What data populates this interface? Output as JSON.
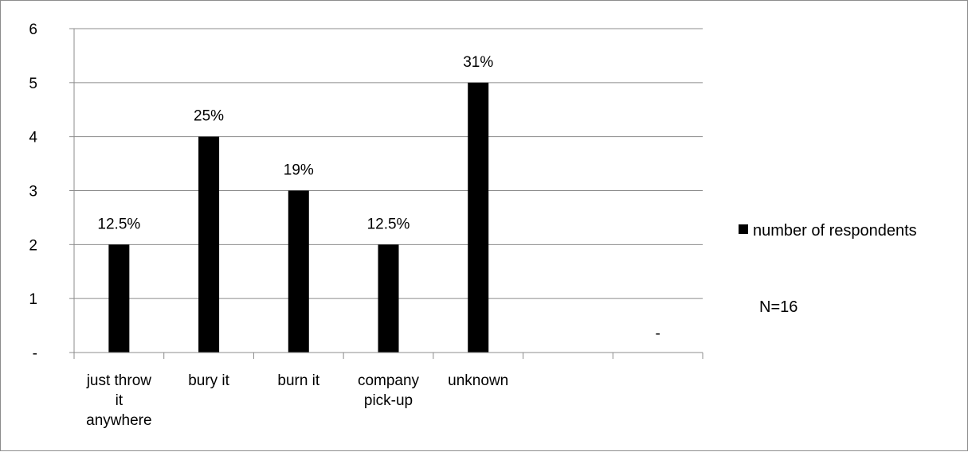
{
  "chart_data": {
    "type": "bar",
    "categories": [
      [
        "just throw",
        "it",
        "anywhere"
      ],
      [
        "bury it"
      ],
      [
        "burn it"
      ],
      [
        "company",
        "pick-up"
      ],
      [
        "unknown"
      ],
      [],
      []
    ],
    "series": [
      {
        "name": "number of respondents",
        "values": [
          2,
          4,
          3,
          2,
          5,
          null,
          null
        ],
        "data_labels": [
          "12.5%",
          "25%",
          "19%",
          "12.5%",
          "31%",
          "",
          "-"
        ],
        "color": "#000000"
      }
    ],
    "y_ticks": [
      "-",
      "1",
      "2",
      "3",
      "4",
      "5",
      "6"
    ],
    "ylim": [
      0,
      6
    ],
    "grid": true,
    "legend_position": "right",
    "annotation": "N=16"
  }
}
